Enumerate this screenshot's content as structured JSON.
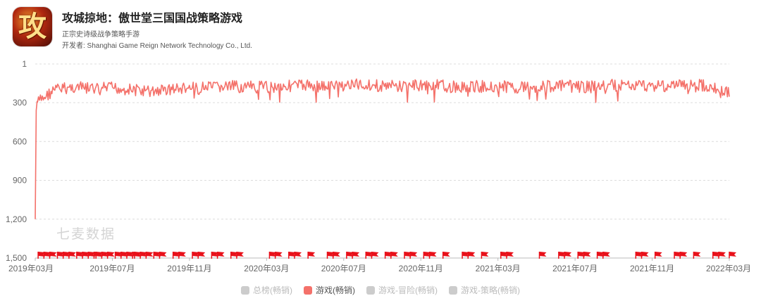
{
  "app": {
    "title": "攻城掠地：傲世堂三国国战策略游戏",
    "subtitle": "正宗史诗级战争策略手游",
    "developer": "开发者: Shanghai Game Reign Network Technology Co., Ltd.",
    "icon_glyph": "攻",
    "icon_name": "game-app-icon"
  },
  "watermark": "七麦数据",
  "colors": {
    "line": "#f4716a",
    "flag": "#e8111a",
    "grid": "#dcdcdc",
    "axis_text": "#666666",
    "inactive_legend": "#cccccc"
  },
  "chart_data": {
    "type": "line",
    "title": "",
    "y_inverted": true,
    "ylim": [
      1,
      1500
    ],
    "y_ticks": [
      "1",
      "300",
      "600",
      "900",
      "1,200",
      "1,500"
    ],
    "y_tick_values": [
      1,
      300,
      600,
      900,
      1200,
      1500
    ],
    "x_start": "2019-03",
    "x_end": "2022-03",
    "x_ticks": [
      "2019年03月",
      "2019年07月",
      "2019年11月",
      "2020年03月",
      "2020年07月",
      "2020年11月",
      "2021年03月",
      "2021年07月",
      "2021年11月",
      "2022年03月"
    ],
    "grid": true,
    "legend_position": "bottom-center",
    "legend": [
      {
        "name": "总榜(畅销)",
        "active": false
      },
      {
        "name": "游戏(畅销)",
        "active": true
      },
      {
        "name": "游戏-冒险(畅销)",
        "active": false
      },
      {
        "name": "游戏-策略(畅销)",
        "active": false
      }
    ],
    "series": [
      {
        "name": "游戏(畅销)",
        "dates": [
          "2019-03",
          "2019-04",
          "2019-05",
          "2019-06",
          "2019-07",
          "2019-08",
          "2019-09",
          "2019-10",
          "2019-11",
          "2019-12",
          "2020-01",
          "2020-02",
          "2020-03",
          "2020-04",
          "2020-05",
          "2020-06",
          "2020-07",
          "2020-08",
          "2020-09",
          "2020-10",
          "2020-11",
          "2020-12",
          "2021-01",
          "2021-02",
          "2021-03",
          "2021-04",
          "2021-05",
          "2021-06",
          "2021-07",
          "2021-08",
          "2021-09",
          "2021-10",
          "2021-11",
          "2021-12",
          "2022-01",
          "2022-02",
          "2022-03"
        ],
        "values": [
          310,
          200,
          180,
          195,
          185,
          200,
          215,
          195,
          190,
          185,
          175,
          180,
          180,
          170,
          165,
          175,
          165,
          160,
          170,
          175,
          165,
          170,
          180,
          175,
          175,
          180,
          175,
          170,
          175,
          180,
          165,
          170,
          165,
          170,
          160,
          170,
          230
        ],
        "min_rank": 1200,
        "min_rank_date": "2019-03"
      }
    ],
    "update_flags": [
      "2019-03",
      "2019-03",
      "2019-03",
      "2019-04",
      "2019-04",
      "2019-04",
      "2019-05",
      "2019-05",
      "2019-05",
      "2019-05",
      "2019-06",
      "2019-06",
      "2019-06",
      "2019-07",
      "2019-07",
      "2019-07",
      "2019-07",
      "2019-08",
      "2019-08",
      "2019-08",
      "2019-09",
      "2019-09",
      "2019-10",
      "2019-10",
      "2019-11",
      "2019-11",
      "2019-12",
      "2019-12",
      "2020-01",
      "2020-01",
      "2020-03",
      "2020-03",
      "2020-04",
      "2020-04",
      "2020-05",
      "2020-06",
      "2020-06",
      "2020-07",
      "2020-07",
      "2020-08",
      "2020-08",
      "2020-09",
      "2020-09",
      "2020-10",
      "2020-10",
      "2020-11",
      "2020-11",
      "2020-12",
      "2021-01",
      "2021-01",
      "2021-02",
      "2021-03",
      "2021-03",
      "2021-05",
      "2021-06",
      "2021-06",
      "2021-07",
      "2021-07",
      "2021-08",
      "2021-08",
      "2021-10",
      "2021-10",
      "2021-11",
      "2021-12",
      "2021-12",
      "2022-01",
      "2022-02",
      "2022-02",
      "2022-03"
    ]
  }
}
